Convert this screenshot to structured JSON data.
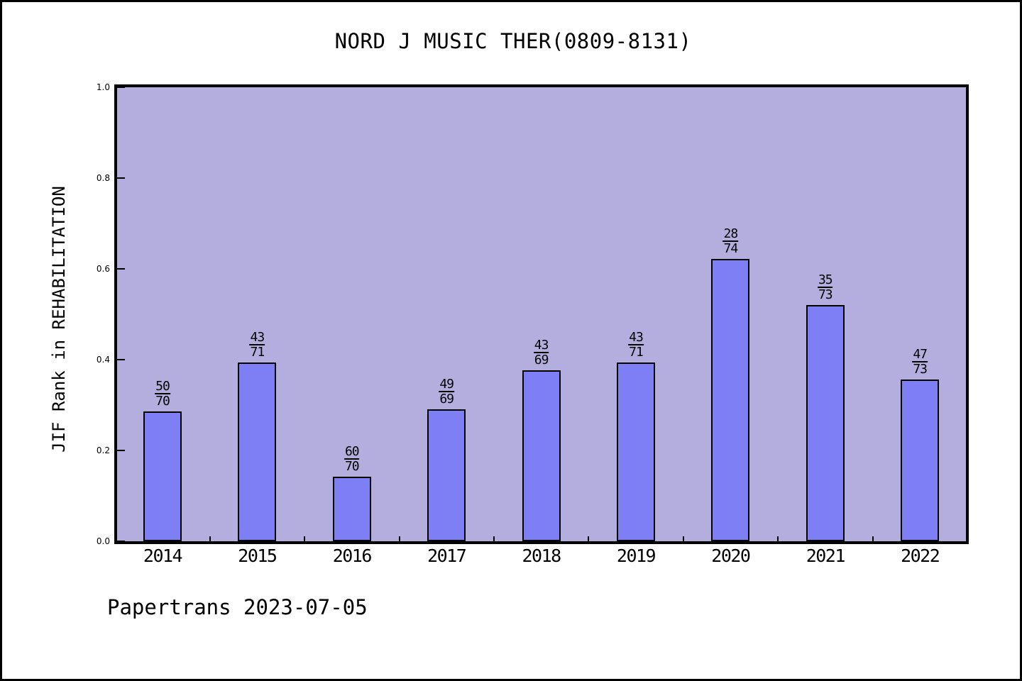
{
  "title": "NORD J MUSIC THER(0809-8131)",
  "footer": "Papertrans 2023-07-05",
  "chart_data": {
    "type": "bar",
    "title": "NORD J MUSIC THER(0809-8131)",
    "xlabel": "",
    "ylabel": "JIF Rank in REHABILITATION",
    "ylim": [
      0.0,
      1.0
    ],
    "ytick_values": [
      0.0,
      0.2,
      0.4,
      0.6,
      0.8,
      1.0
    ],
    "ytick_labels": [
      "0.0",
      "0.2",
      "0.4",
      "0.6",
      "0.8",
      "1.0"
    ],
    "grid": false,
    "legend": "none",
    "categories": [
      "2014",
      "2015",
      "2016",
      "2017",
      "2018",
      "2019",
      "2020",
      "2021",
      "2022"
    ],
    "values": [
      0.2857,
      0.3944,
      0.1429,
      0.2899,
      0.3768,
      0.3944,
      0.6216,
      0.5205,
      0.3562
    ],
    "bar_labels": [
      {
        "numerator": "50",
        "denominator": "70"
      },
      {
        "numerator": "43",
        "denominator": "71"
      },
      {
        "numerator": "60",
        "denominator": "70"
      },
      {
        "numerator": "49",
        "denominator": "69"
      },
      {
        "numerator": "43",
        "denominator": "69"
      },
      {
        "numerator": "43",
        "denominator": "71"
      },
      {
        "numerator": "28",
        "denominator": "74"
      },
      {
        "numerator": "35",
        "denominator": "73"
      },
      {
        "numerator": "47",
        "denominator": "73"
      }
    ],
    "colors": {
      "bar_fill": "#7e7ef5",
      "bar_edge": "#000000",
      "plot_background": "#b3aede",
      "figure_background": "#ffffff",
      "text": "#000000"
    }
  }
}
